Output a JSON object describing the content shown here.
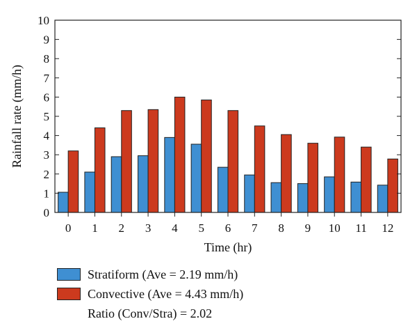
{
  "chart_data": {
    "type": "bar",
    "x": [
      0,
      1,
      2,
      3,
      4,
      5,
      6,
      7,
      8,
      9,
      10,
      11,
      12
    ],
    "series": [
      {
        "name": "Stratiform (Ave = 2.19 mm/h)",
        "color": "#3f8fd2",
        "values": [
          1.05,
          2.1,
          2.9,
          2.95,
          3.9,
          3.55,
          2.35,
          1.95,
          1.55,
          1.5,
          1.85,
          1.58,
          1.42
        ]
      },
      {
        "name": "Convective (Ave = 4.43 mm/h)",
        "color": "#cc3a1e",
        "values": [
          3.2,
          4.4,
          5.3,
          5.35,
          6.0,
          5.85,
          5.3,
          4.5,
          4.05,
          3.6,
          3.92,
          3.4,
          2.78
        ]
      }
    ],
    "xlabel": "Time (hr)",
    "ylabel": "Rainfall rate (mm/h)",
    "ylim": [
      0,
      10
    ],
    "yticks": [
      0,
      1,
      2,
      3,
      4,
      5,
      6,
      7,
      8,
      9,
      10
    ],
    "grid": false,
    "legend_position": "bottom",
    "annotation": "Ratio (Conv/Stra) = 2.02"
  }
}
